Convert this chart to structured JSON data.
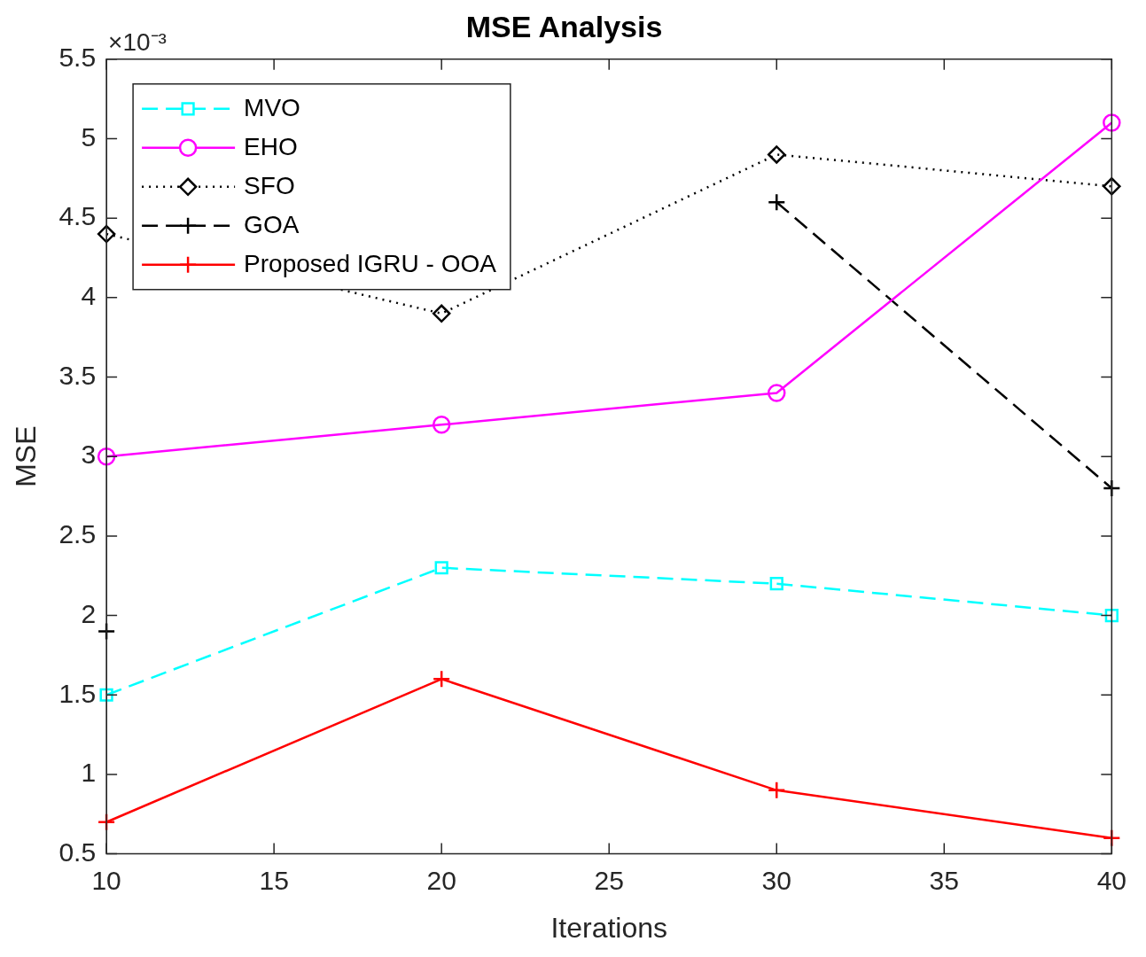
{
  "chart_data": {
    "type": "line",
    "title": "MSE Analysis",
    "xlabel": "Iterations",
    "ylabel": "MSE",
    "annotations": [
      "×10⁻³"
    ],
    "x": [
      10,
      20,
      30,
      40
    ],
    "xlim": [
      10,
      40
    ],
    "xticks": [
      10,
      15,
      20,
      25,
      30,
      35,
      40
    ],
    "ylim": [
      0.5,
      5.5
    ],
    "yticks": [
      0.5,
      1,
      1.5,
      2,
      2.5,
      3,
      3.5,
      4,
      4.5,
      5,
      5.5
    ],
    "legend": "top left",
    "series": [
      {
        "name": "MVO",
        "color": "#00ffff",
        "values": [
          1.5,
          2.3,
          2.2,
          2.0
        ],
        "marker": "square",
        "line_style": "dashed"
      },
      {
        "name": "EHO",
        "color": "#ff00ff",
        "values": [
          3.0,
          3.2,
          3.4,
          5.1
        ],
        "marker": "circle",
        "line_style": "solid"
      },
      {
        "name": "SFO",
        "color": "#000000",
        "values": [
          4.4,
          3.9,
          4.9,
          4.7
        ],
        "marker": "diamond",
        "line_style": "dotted"
      },
      {
        "name": "GOA",
        "color": "#000000",
        "values": [
          1.9,
          null,
          4.6,
          2.8
        ],
        "marker": "cross",
        "line_style": "dashed"
      },
      {
        "name": "Proposed IGRU - OOA",
        "color": "#ff0000",
        "values": [
          0.7,
          1.6,
          0.9,
          0.6
        ],
        "marker": "cross",
        "line_style": "solid"
      }
    ]
  }
}
